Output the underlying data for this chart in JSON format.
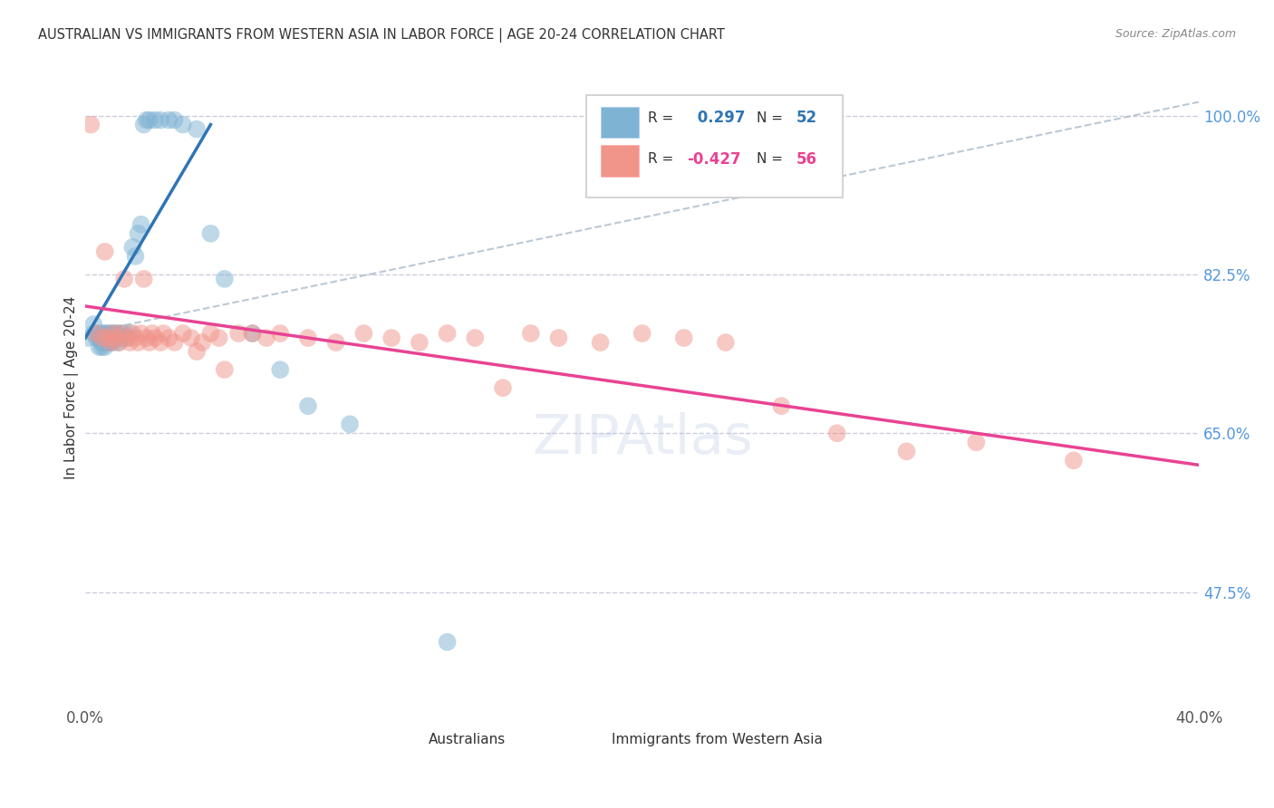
{
  "title": "AUSTRALIAN VS IMMIGRANTS FROM WESTERN ASIA IN LABOR FORCE | AGE 20-24 CORRELATION CHART",
  "source": "Source: ZipAtlas.com",
  "ylabel": "In Labor Force | Age 20-24",
  "xlim": [
    0.0,
    0.4
  ],
  "ylim": [
    0.35,
    1.05
  ],
  "r_australian": 0.297,
  "n_australian": 52,
  "r_immigrants": -0.427,
  "n_immigrants": 56,
  "blue_color": "#7FB3D3",
  "pink_color": "#F1948A",
  "line_blue": "#2E75B6",
  "line_pink": "#E84393",
  "diagonal_color": "#AABBCC",
  "background": "#FFFFFF",
  "grid_color": "#CCCCDD",
  "aus_x": [
    0.001,
    0.003,
    0.003,
    0.004,
    0.005,
    0.005,
    0.005,
    0.006,
    0.006,
    0.006,
    0.006,
    0.007,
    0.007,
    0.007,
    0.007,
    0.008,
    0.008,
    0.008,
    0.009,
    0.009,
    0.009,
    0.01,
    0.01,
    0.01,
    0.011,
    0.011,
    0.012,
    0.012,
    0.013,
    0.014,
    0.015,
    0.016,
    0.017,
    0.018,
    0.019,
    0.02,
    0.021,
    0.022,
    0.023,
    0.025,
    0.027,
    0.03,
    0.032,
    0.035,
    0.04,
    0.045,
    0.05,
    0.06,
    0.07,
    0.08,
    0.095,
    0.13
  ],
  "aus_y": [
    0.755,
    0.77,
    0.76,
    0.755,
    0.76,
    0.755,
    0.745,
    0.76,
    0.755,
    0.75,
    0.745,
    0.76,
    0.755,
    0.75,
    0.745,
    0.76,
    0.755,
    0.75,
    0.76,
    0.755,
    0.75,
    0.76,
    0.755,
    0.75,
    0.76,
    0.755,
    0.76,
    0.75,
    0.755,
    0.76,
    0.755,
    0.76,
    0.855,
    0.845,
    0.87,
    0.88,
    0.99,
    0.995,
    0.995,
    0.995,
    0.995,
    0.995,
    0.995,
    0.99,
    0.985,
    0.87,
    0.82,
    0.76,
    0.72,
    0.68,
    0.66,
    0.42
  ],
  "imm_x": [
    0.002,
    0.004,
    0.006,
    0.007,
    0.008,
    0.009,
    0.01,
    0.011,
    0.012,
    0.013,
    0.014,
    0.015,
    0.016,
    0.017,
    0.018,
    0.019,
    0.02,
    0.021,
    0.022,
    0.023,
    0.024,
    0.025,
    0.027,
    0.028,
    0.03,
    0.032,
    0.035,
    0.038,
    0.04,
    0.042,
    0.045,
    0.048,
    0.05,
    0.055,
    0.06,
    0.065,
    0.07,
    0.08,
    0.09,
    0.1,
    0.11,
    0.12,
    0.13,
    0.14,
    0.15,
    0.16,
    0.17,
    0.185,
    0.2,
    0.215,
    0.23,
    0.25,
    0.27,
    0.295,
    0.32,
    0.355
  ],
  "imm_y": [
    0.99,
    0.76,
    0.755,
    0.85,
    0.755,
    0.75,
    0.76,
    0.755,
    0.75,
    0.76,
    0.82,
    0.755,
    0.75,
    0.76,
    0.755,
    0.75,
    0.76,
    0.82,
    0.755,
    0.75,
    0.76,
    0.755,
    0.75,
    0.76,
    0.755,
    0.75,
    0.76,
    0.755,
    0.74,
    0.75,
    0.76,
    0.755,
    0.72,
    0.76,
    0.76,
    0.755,
    0.76,
    0.755,
    0.75,
    0.76,
    0.755,
    0.75,
    0.76,
    0.755,
    0.7,
    0.76,
    0.755,
    0.75,
    0.76,
    0.755,
    0.75,
    0.68,
    0.65,
    0.63,
    0.64,
    0.62
  ],
  "ytick_positions": [
    0.475,
    0.65,
    0.825,
    1.0
  ],
  "ytick_labels": [
    "47.5%",
    "65.0%",
    "82.5%",
    "100.0%"
  ],
  "xtick_positions": [
    0.0,
    0.1,
    0.2,
    0.3,
    0.4
  ],
  "xtick_labels": [
    "0.0%",
    "",
    "",
    "",
    "40.0%"
  ]
}
